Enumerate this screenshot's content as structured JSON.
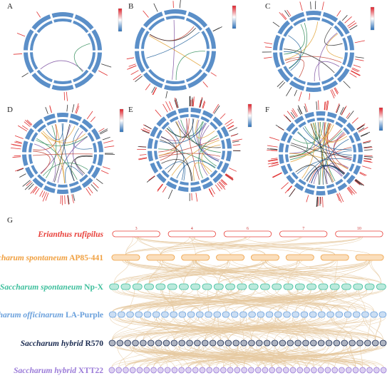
{
  "panel_labels": [
    "A",
    "B",
    "C",
    "D",
    "E",
    "F",
    "G"
  ],
  "synteny": {
    "species": [
      {
        "italic": "Erianthus rufipilus",
        "color": "#e8403a"
      },
      {
        "italic": "Saccharum spontaneum",
        "rest": "AP85-441",
        "color": "#f0a040"
      },
      {
        "italic": "Saccharum spontaneum",
        "rest": "Np-X",
        "color": "#3dbf9c"
      },
      {
        "italic": "Saccharum officinarum",
        "rest": "LA-Purple",
        "color": "#6aa0dc"
      },
      {
        "italic": "Saccharum hybrid",
        "rest": "R570",
        "color": "#1a2a50"
      },
      {
        "italic": "Saccharum hybrid",
        "rest": "XTT22",
        "color": "#9a7ad8"
      }
    ],
    "erianthus_chromosomes": [
      "3",
      "4",
      "6",
      "7",
      "10"
    ]
  }
}
